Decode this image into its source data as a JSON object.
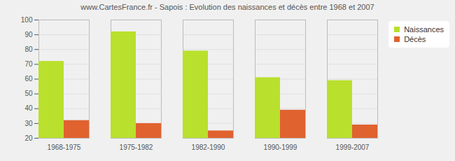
{
  "chart_data": {
    "type": "bar",
    "title": "www.CartesFrance.fr - Sapois : Evolution des naissances et décès entre 1968 et 2007",
    "categories": [
      "1968-1975",
      "1975-1982",
      "1982-1990",
      "1990-1999",
      "1999-2007"
    ],
    "series": [
      {
        "name": "Naissances",
        "color": "#b9e02c",
        "values": [
          72,
          92,
          79,
          61,
          59
        ]
      },
      {
        "name": "Décès",
        "color": "#e0622e",
        "values": [
          32,
          30,
          25,
          39,
          29
        ]
      }
    ],
    "ylim": [
      20,
      100
    ],
    "yticks": [
      20,
      30,
      40,
      50,
      60,
      70,
      80,
      90,
      100
    ],
    "grid": true,
    "legend": "top-right"
  }
}
